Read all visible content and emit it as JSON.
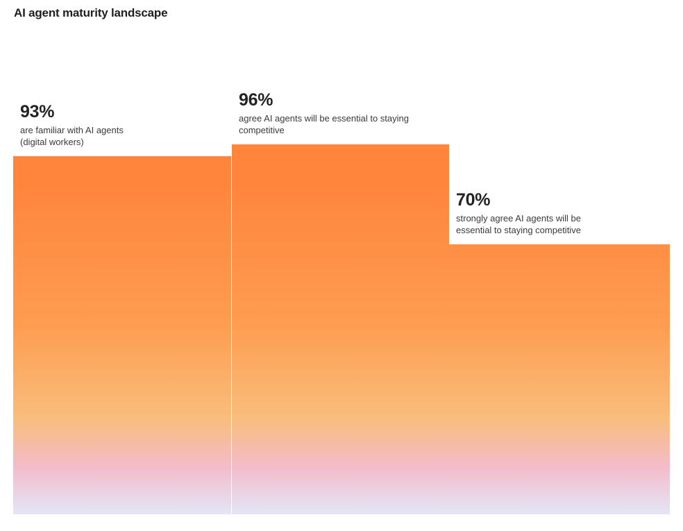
{
  "chart_data": {
    "type": "bar",
    "title": "AI agent maturity landscape",
    "ylim": [
      0,
      100
    ],
    "categories": [
      "are familiar with AI agents (digital workers)",
      "agree AI agents will be essential to staying competitive",
      "strongly agree AI agents will be essential to staying competitive"
    ],
    "values": [
      93,
      96,
      70
    ],
    "value_labels": [
      "93%",
      "96%",
      "70%"
    ],
    "description_lines": [
      [
        "are familiar with AI agents",
        "(digital workers)"
      ],
      [
        "agree AI agents will be essential to staying",
        "competitive"
      ],
      [
        "strongly agree AI agents will be",
        "essential to staying competitive"
      ]
    ],
    "grid": false,
    "legend": "none",
    "colors": {
      "gradient_top": "#FF843C",
      "gradient_mid": "#FE9C50",
      "gradient_peach": "#F9BD7C",
      "gradient_pink": "#F3BCCB",
      "gradient_bottom": "#E3E6F7"
    }
  }
}
